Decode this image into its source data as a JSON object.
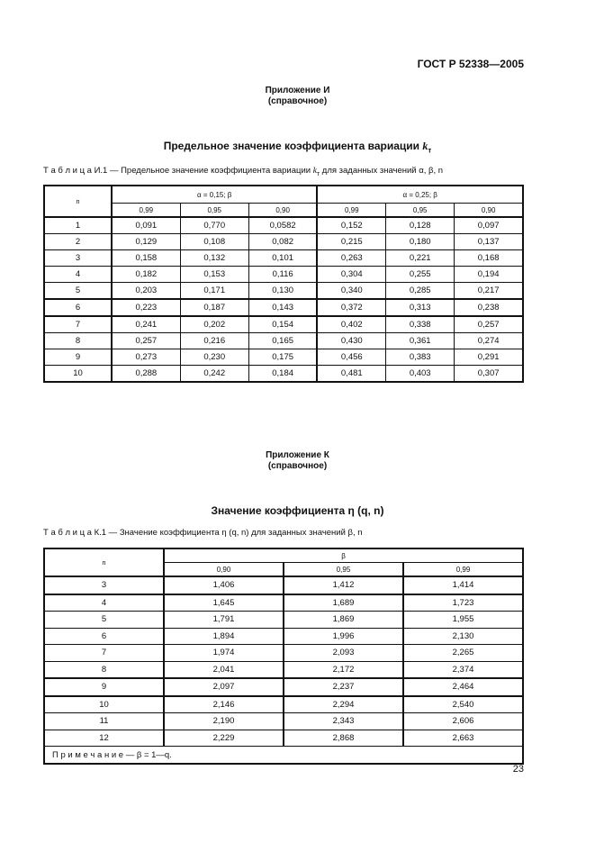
{
  "header": {
    "standard": "ГОСТ Р 52338—2005"
  },
  "appendix_i": {
    "name": "Приложение И",
    "type": "(справочное)",
    "title": "Предельное значение коэффициента вариации",
    "title_symbol": "k",
    "title_sub": "т",
    "caption_prefix": "Т а б л и ц а  И.1 — Предельное значение коэффициента вариации ",
    "caption_symbol": "k",
    "caption_sub": "т",
    "caption_suffix": " для заданных значений α, β, n",
    "table": {
      "n_header": "n",
      "groups": [
        "α = 0,15; β",
        "α = 0,25; β"
      ],
      "subheaders": [
        "0,99",
        "0,95",
        "0,90",
        "0,99",
        "0,95",
        "0,90"
      ],
      "rows": [
        [
          "1",
          "0,091",
          "0,770",
          "0,0582",
          "0,152",
          "0,128",
          "0,097"
        ],
        [
          "2",
          "0,129",
          "0,108",
          "0,082",
          "0,215",
          "0,180",
          "0,137"
        ],
        [
          "3",
          "0,158",
          "0,132",
          "0,101",
          "0,263",
          "0,221",
          "0,168"
        ],
        [
          "4",
          "0,182",
          "0,153",
          "0,116",
          "0,304",
          "0,255",
          "0,194"
        ],
        [
          "5",
          "0,203",
          "0,171",
          "0,130",
          "0,340",
          "0,285",
          "0,217"
        ],
        [
          "6",
          "0,223",
          "0,187",
          "0,143",
          "0,372",
          "0,313",
          "0,238"
        ],
        [
          "7",
          "0,241",
          "0,202",
          "0,154",
          "0,402",
          "0,338",
          "0,257"
        ],
        [
          "8",
          "0,257",
          "0,216",
          "0,165",
          "0,430",
          "0,361",
          "0,274"
        ],
        [
          "9",
          "0,273",
          "0,230",
          "0,175",
          "0,456",
          "0,383",
          "0,291"
        ],
        [
          "10",
          "0,288",
          "0,242",
          "0,184",
          "0,481",
          "0,403",
          "0,307"
        ]
      ]
    }
  },
  "appendix_k": {
    "name": "Приложение К",
    "type": "(справочное)",
    "title": "Значение коэффициента η (q, n)",
    "caption": "Т а б л и ц а  К.1 — Значение коэффициента η (q, n) для заданных значений β, n",
    "table": {
      "n_header": "n",
      "group": "β",
      "subheaders": [
        "0,90",
        "0,95",
        "0,99"
      ],
      "rows": [
        [
          "3",
          "1,406",
          "1,412",
          "1,414"
        ],
        [
          "4",
          "1,645",
          "1,689",
          "1,723"
        ],
        [
          "5",
          "1,791",
          "1,869",
          "1,955"
        ],
        [
          "6",
          "1,894",
          "1,996",
          "2,130"
        ],
        [
          "7",
          "1,974",
          "2,093",
          "2,265"
        ],
        [
          "8",
          "2,041",
          "2,172",
          "2,374"
        ],
        [
          "9",
          "2,097",
          "2,237",
          "2,464"
        ],
        [
          "10",
          "2,146",
          "2,294",
          "2,540"
        ],
        [
          "11",
          "2,190",
          "2,343",
          "2,606"
        ],
        [
          "12",
          "2,229",
          "2,868",
          "2,663"
        ]
      ],
      "note": "П р и м е ч а н и е — β = 1—q."
    }
  },
  "footer": {
    "page_number": "23"
  }
}
